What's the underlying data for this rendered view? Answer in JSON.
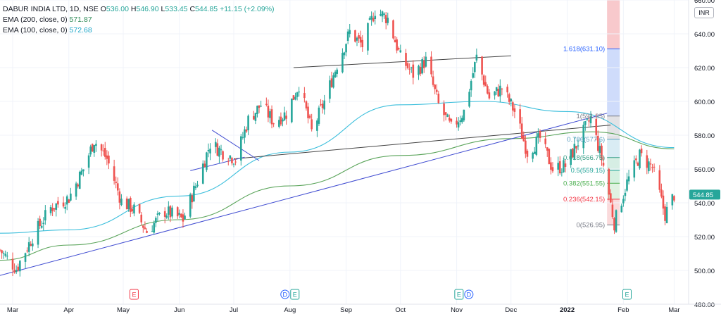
{
  "legend": {
    "symbol_line": "DABUR INDIA LTD, 1D, NSE",
    "o_label": "O",
    "o": "536.00",
    "h_label": "H",
    "h": "546.90",
    "l_label": "L",
    "l": "533.45",
    "c_label": "C",
    "c": "544.85",
    "change": "+11.15 (+2.09%)",
    "ema200_label": "EMA (200, close, 0)",
    "ema200": "571.87",
    "ema100_label": "EMA (100, close, 0)",
    "ema100": "572.68"
  },
  "currency": "INR",
  "last_price": "544.85",
  "colors": {
    "up": "#26a69a",
    "down": "#ef5350",
    "ema100": "#3dbfdc",
    "ema200": "#5aa45a",
    "trend_blue": "#3f4bd1",
    "trend_black": "#444444"
  },
  "fib_levels": [
    {
      "label": "1.618(631.10)",
      "value": 631.1,
      "color": "#2962ff"
    },
    {
      "label": "1(591.35)",
      "value": 591.35,
      "color": "#787b86"
    },
    {
      "label": "0.786(577.6)",
      "value": 577.6,
      "color": "#5aa0c0"
    },
    {
      "label": "0.618(566.75)",
      "value": 566.75,
      "color": "#3aa088"
    },
    {
      "label": "0.5(559.15)",
      "value": 559.15,
      "color": "#26a69a"
    },
    {
      "label": "0.382(551.55)",
      "value": 551.55,
      "color": "#4caf50"
    },
    {
      "label": "0.236(542.15)",
      "value": 542.15,
      "color": "#f23645"
    },
    {
      "label": "0(526.95)",
      "value": 526.95,
      "color": "#787b86"
    }
  ],
  "event_markers": [
    {
      "date": "2021-05-07",
      "labels": [
        "E"
      ],
      "colors": [
        "#f23645"
      ]
    },
    {
      "date": "2021-08-01",
      "labels": [
        "D",
        "E"
      ],
      "colors": [
        "#2962ff",
        "#26a69a"
      ]
    },
    {
      "date": "2021-11-05",
      "labels": [
        "E",
        "D"
      ],
      "colors": [
        "#26a69a",
        "#2962ff"
      ]
    },
    {
      "date": "2022-02-03",
      "labels": [
        "E"
      ],
      "colors": [
        "#26a69a"
      ]
    }
  ],
  "chart_data": {
    "type": "candlestick",
    "title": "DABUR INDIA LTD, 1D, NSE",
    "ylim": [
      480,
      660
    ],
    "xlim": [
      "2021-02-22",
      "2022-03-09"
    ],
    "y_ticks": [
      480,
      500,
      520,
      540,
      560,
      580,
      600,
      620,
      640,
      660
    ],
    "y_tick_labels": [
      "480.00",
      "500.00",
      "520.00",
      "540.00",
      "560.00",
      "580.00",
      "600.00",
      "620.00",
      "640.00",
      "660.00"
    ],
    "x_ticks": [
      {
        "date": "2021-03-01",
        "label": "Mar"
      },
      {
        "date": "2021-04-01",
        "label": "Apr"
      },
      {
        "date": "2021-05-01",
        "label": "May"
      },
      {
        "date": "2021-06-01",
        "label": "Jun"
      },
      {
        "date": "2021-07-01",
        "label": "Jul"
      },
      {
        "date": "2021-08-01",
        "label": "Aug"
      },
      {
        "date": "2021-09-01",
        "label": "Sep"
      },
      {
        "date": "2021-10-01",
        "label": "Oct"
      },
      {
        "date": "2021-11-01",
        "label": "Nov"
      },
      {
        "date": "2021-12-01",
        "label": "Dec"
      },
      {
        "date": "2022-01-01",
        "label": "2022"
      },
      {
        "date": "2022-02-01",
        "label": "Feb"
      },
      {
        "date": "2022-03-01",
        "label": "Mar"
      }
    ],
    "price_series_anchors": [
      {
        "date": "2021-02-22",
        "close": 512
      },
      {
        "date": "2021-03-03",
        "close": 501
      },
      {
        "date": "2021-03-12",
        "close": 520
      },
      {
        "date": "2021-03-22",
        "close": 537
      },
      {
        "date": "2021-04-01",
        "close": 543
      },
      {
        "date": "2021-04-09",
        "close": 560
      },
      {
        "date": "2021-04-15",
        "close": 577
      },
      {
        "date": "2021-04-22",
        "close": 566
      },
      {
        "date": "2021-04-30",
        "close": 541
      },
      {
        "date": "2021-05-07",
        "close": 536
      },
      {
        "date": "2021-05-14",
        "close": 523
      },
      {
        "date": "2021-05-24",
        "close": 535
      },
      {
        "date": "2021-06-03",
        "close": 530
      },
      {
        "date": "2021-06-11",
        "close": 553
      },
      {
        "date": "2021-06-18",
        "close": 575
      },
      {
        "date": "2021-06-25",
        "close": 570
      },
      {
        "date": "2021-07-02",
        "close": 566
      },
      {
        "date": "2021-07-09",
        "close": 589
      },
      {
        "date": "2021-07-16",
        "close": 598
      },
      {
        "date": "2021-07-23",
        "close": 588
      },
      {
        "date": "2021-07-30",
        "close": 593
      },
      {
        "date": "2021-08-06",
        "close": 610
      },
      {
        "date": "2021-08-13",
        "close": 582
      },
      {
        "date": "2021-08-20",
        "close": 600
      },
      {
        "date": "2021-08-27",
        "close": 622
      },
      {
        "date": "2021-09-03",
        "close": 641
      },
      {
        "date": "2021-09-10",
        "close": 633
      },
      {
        "date": "2021-09-17",
        "close": 654
      },
      {
        "date": "2021-09-24",
        "close": 649
      },
      {
        "date": "2021-10-01",
        "close": 626
      },
      {
        "date": "2021-10-08",
        "close": 616
      },
      {
        "date": "2021-10-15",
        "close": 624
      },
      {
        "date": "2021-10-22",
        "close": 598
      },
      {
        "date": "2021-10-29",
        "close": 584
      },
      {
        "date": "2021-11-05",
        "close": 594
      },
      {
        "date": "2021-11-12",
        "close": 626
      },
      {
        "date": "2021-11-19",
        "close": 602
      },
      {
        "date": "2021-11-26",
        "close": 608
      },
      {
        "date": "2021-12-03",
        "close": 594
      },
      {
        "date": "2021-12-10",
        "close": 570
      },
      {
        "date": "2021-12-17",
        "close": 578
      },
      {
        "date": "2021-12-24",
        "close": 560
      },
      {
        "date": "2021-12-31",
        "close": 562
      },
      {
        "date": "2022-01-07",
        "close": 576
      },
      {
        "date": "2022-01-14",
        "close": 590
      },
      {
        "date": "2022-01-21",
        "close": 562
      },
      {
        "date": "2022-01-27",
        "close": 528
      },
      {
        "date": "2022-02-03",
        "close": 552
      },
      {
        "date": "2022-02-10",
        "close": 568
      },
      {
        "date": "2022-02-17",
        "close": 561
      },
      {
        "date": "2022-02-24",
        "close": 533
      },
      {
        "date": "2022-03-01",
        "close": 544.85
      }
    ],
    "series": [
      {
        "name": "EMA (200, close, 0)",
        "points": [
          {
            "date": "2021-02-22",
            "value": 506
          },
          {
            "date": "2021-04-01",
            "value": 515
          },
          {
            "date": "2021-06-01",
            "value": 530
          },
          {
            "date": "2021-08-01",
            "value": 550
          },
          {
            "date": "2021-10-01",
            "value": 568
          },
          {
            "date": "2021-12-01",
            "value": 578
          },
          {
            "date": "2022-01-15",
            "value": 582
          },
          {
            "date": "2022-03-01",
            "value": 571.87
          }
        ]
      },
      {
        "name": "EMA (100, close, 0)",
        "points": [
          {
            "date": "2021-02-22",
            "value": 522
          },
          {
            "date": "2021-04-01",
            "value": 524
          },
          {
            "date": "2021-06-01",
            "value": 544
          },
          {
            "date": "2021-08-01",
            "value": 570
          },
          {
            "date": "2021-10-01",
            "value": 598
          },
          {
            "date": "2021-11-15",
            "value": 600
          },
          {
            "date": "2022-01-01",
            "value": 594
          },
          {
            "date": "2022-03-01",
            "value": 572.68
          }
        ]
      }
    ],
    "trendlines": [
      {
        "color": "blue",
        "from": {
          "date": "2021-02-22",
          "value": 497
        },
        "to": {
          "date": "2022-01-23",
          "value": 593
        }
      },
      {
        "color": "black",
        "from": {
          "date": "2021-07-01",
          "value": 566
        },
        "to": {
          "date": "2022-01-25",
          "value": 586
        }
      },
      {
        "color": "black",
        "from": {
          "date": "2021-08-03",
          "value": 620
        },
        "to": {
          "date": "2021-12-01",
          "value": 627
        }
      },
      {
        "color": "blue",
        "from": {
          "date": "2021-06-07",
          "value": 559
        },
        "to": {
          "date": "2021-07-07",
          "value": 567
        }
      },
      {
        "color": "blue",
        "from": {
          "date": "2021-06-19",
          "value": 583
        },
        "to": {
          "date": "2021-07-15",
          "value": 565
        }
      }
    ]
  }
}
